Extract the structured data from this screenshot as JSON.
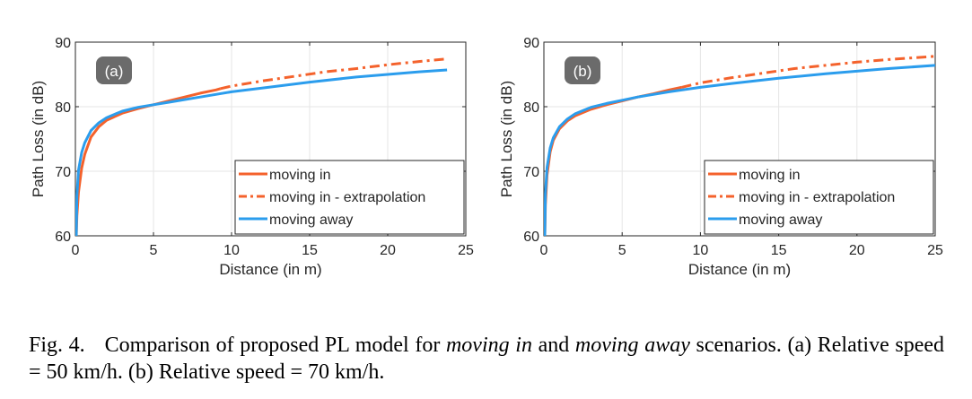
{
  "chart_data": [
    {
      "type": "line",
      "panel_label": "(a)",
      "xlabel": "Distance (in m)",
      "ylabel": "Path Loss (in dB)",
      "xlim": [
        0,
        25
      ],
      "ylim": [
        60,
        90
      ],
      "xticks": [
        0,
        5,
        10,
        15,
        20,
        25
      ],
      "yticks": [
        60,
        70,
        80,
        90
      ],
      "grid": true,
      "legend_position": "bottom-right",
      "series": [
        {
          "name": "moving in",
          "color": "#f4622c",
          "style": "solid",
          "x": [
            0.06,
            0.1,
            0.2,
            0.4,
            0.6,
            1,
            1.5,
            2,
            3,
            4,
            5,
            6,
            7,
            8,
            9,
            9.3
          ],
          "y": [
            60,
            63.1,
            66.8,
            70.5,
            72.6,
            75.3,
            76.9,
            77.9,
            79.0,
            79.7,
            80.3,
            80.9,
            81.5,
            82.1,
            82.6,
            82.8
          ]
        },
        {
          "name": "moving in - extrapolation",
          "color": "#f4622c",
          "style": "dashdot",
          "x": [
            9.3,
            10,
            12,
            14,
            16,
            18,
            20,
            22,
            23.8
          ],
          "y": [
            82.8,
            83.2,
            84.0,
            84.7,
            85.4,
            85.9,
            86.5,
            87.0,
            87.4
          ]
        },
        {
          "name": "moving away",
          "color": "#2b9ded",
          "style": "solid",
          "x": [
            0.06,
            0.1,
            0.2,
            0.4,
            0.6,
            1,
            1.5,
            2,
            3,
            4,
            5,
            6,
            8,
            10,
            12,
            15,
            18,
            20,
            22,
            23.8
          ],
          "y": [
            60,
            66.2,
            70.2,
            72.9,
            74.4,
            76.3,
            77.5,
            78.3,
            79.3,
            79.9,
            80.3,
            80.7,
            81.5,
            82.3,
            82.9,
            83.8,
            84.6,
            85.0,
            85.4,
            85.7
          ]
        }
      ]
    },
    {
      "type": "line",
      "panel_label": "(b)",
      "xlabel": "Distance (in m)",
      "ylabel": "Path Loss (in dB)",
      "xlim": [
        0,
        25
      ],
      "ylim": [
        60,
        90
      ],
      "xticks": [
        0,
        5,
        10,
        15,
        20,
        25
      ],
      "yticks": [
        60,
        70,
        80,
        90
      ],
      "grid": true,
      "legend_position": "bottom-right",
      "series": [
        {
          "name": "moving in",
          "color": "#f4622c",
          "style": "solid",
          "x": [
            0.06,
            0.1,
            0.2,
            0.4,
            0.6,
            1,
            1.5,
            2,
            3,
            4,
            5,
            6,
            7,
            8,
            8.8
          ],
          "y": [
            60,
            64.8,
            69.4,
            73.0,
            74.8,
            76.6,
            77.8,
            78.6,
            79.6,
            80.3,
            80.9,
            81.5,
            82.0,
            82.6,
            83.0
          ]
        },
        {
          "name": "moving in - extrapolation",
          "color": "#f4622c",
          "style": "dashdot",
          "x": [
            8.8,
            10,
            12,
            14,
            16,
            18,
            20,
            22,
            25
          ],
          "y": [
            83.0,
            83.7,
            84.5,
            85.2,
            85.9,
            86.4,
            86.9,
            87.3,
            87.8
          ]
        },
        {
          "name": "moving away",
          "color": "#2b9ded",
          "style": "solid",
          "x": [
            0.06,
            0.1,
            0.2,
            0.4,
            0.6,
            1,
            1.5,
            2,
            3,
            4,
            5,
            6,
            8,
            10,
            12,
            15,
            18,
            20,
            22,
            25
          ],
          "y": [
            60,
            66.5,
            70.6,
            73.6,
            75.2,
            76.9,
            78.1,
            78.9,
            79.9,
            80.5,
            81.0,
            81.5,
            82.3,
            83.0,
            83.6,
            84.4,
            85.1,
            85.5,
            85.9,
            86.4
          ]
        }
      ]
    }
  ],
  "caption": {
    "lead": "Fig. 4.",
    "parts": [
      {
        "text": "Comparison of proposed PL model for ",
        "italic": false
      },
      {
        "text": "moving in",
        "italic": true
      },
      {
        "text": " and ",
        "italic": false
      },
      {
        "text": "moving away",
        "italic": true
      },
      {
        "text": " scenarios. (a) Relative speed = 50 km/h. (b) Relative speed = 70 km/h.",
        "italic": false
      }
    ]
  }
}
